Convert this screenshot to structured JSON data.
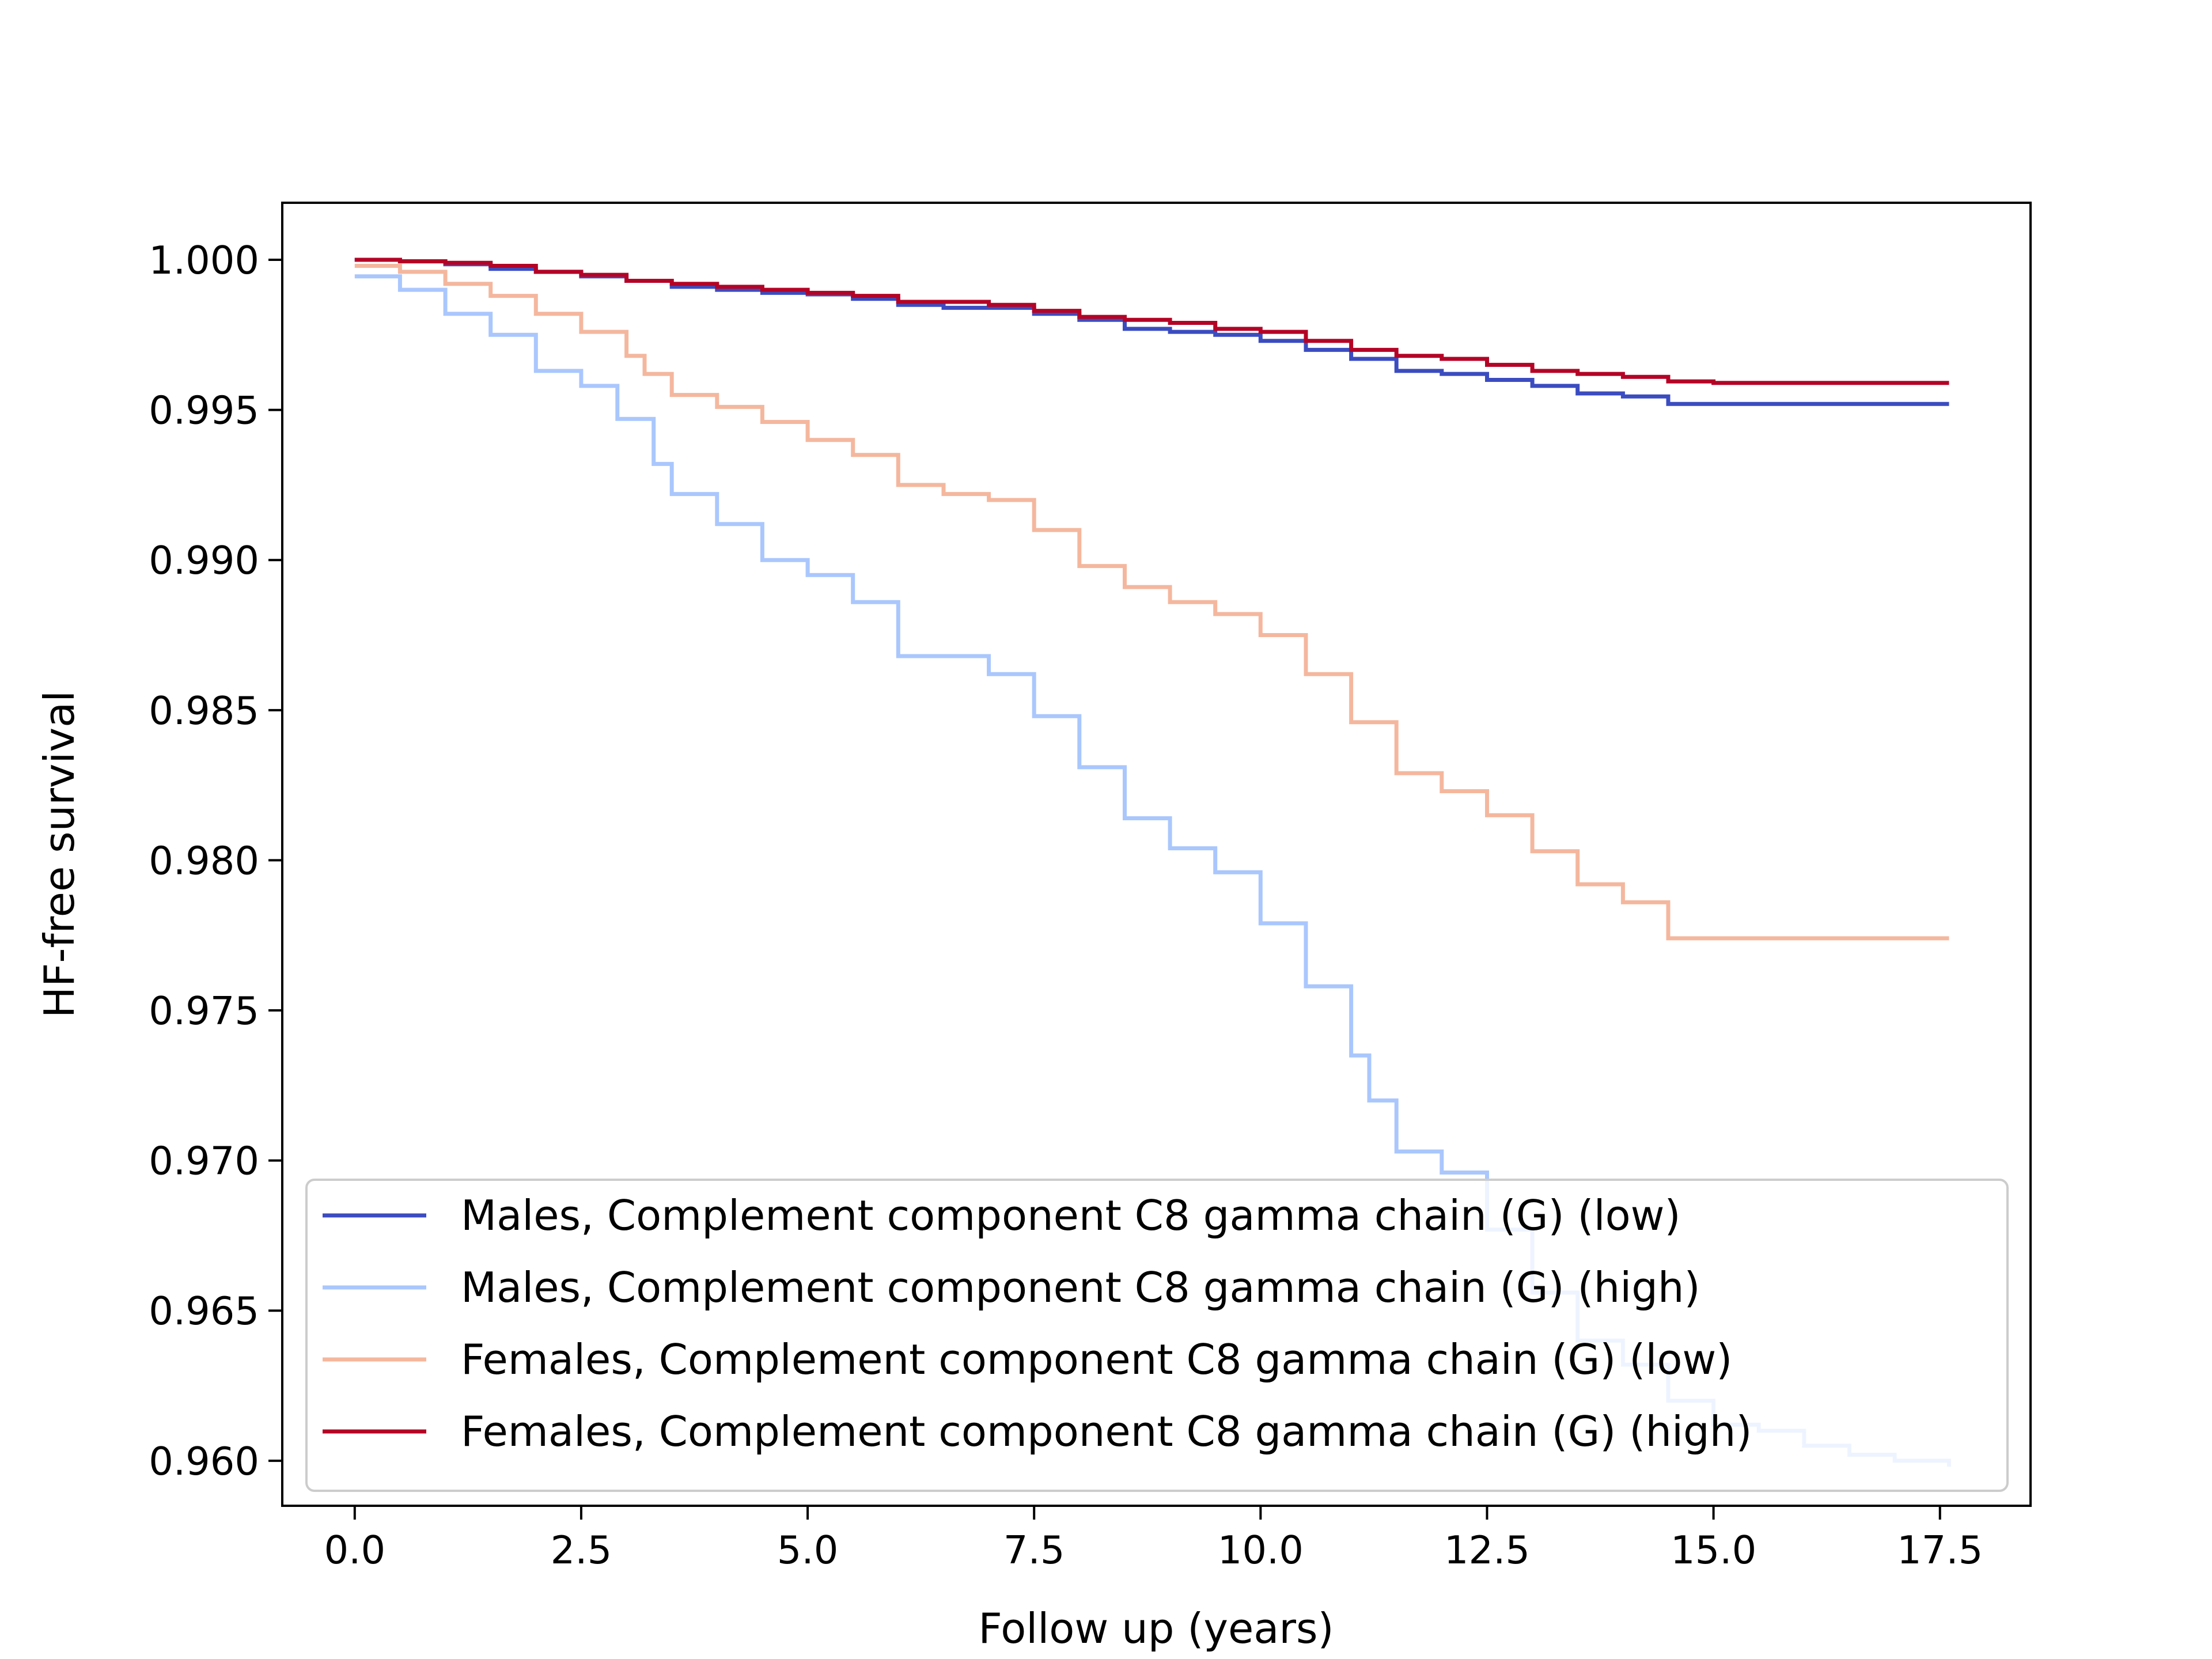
{
  "chart_data": {
    "type": "line",
    "step": true,
    "title": "",
    "xlabel": "Follow up (years)",
    "ylabel": "HF-free survival",
    "xlim": [
      -0.8,
      18.5
    ],
    "ylim": [
      0.9585,
      1.0019
    ],
    "xticks": [
      0.0,
      2.5,
      5.0,
      7.5,
      10.0,
      12.5,
      15.0,
      17.5
    ],
    "xtick_labels": [
      "0.0",
      "2.5",
      "5.0",
      "7.5",
      "10.0",
      "12.5",
      "15.0",
      "17.5"
    ],
    "yticks": [
      0.96,
      0.965,
      0.97,
      0.975,
      0.98,
      0.985,
      0.99,
      0.995,
      1.0
    ],
    "ytick_labels": [
      "0.960",
      "0.965",
      "0.970",
      "0.975",
      "0.980",
      "0.985",
      "0.990",
      "0.995",
      "1.000"
    ],
    "grid": false,
    "legend_position": "lower-left",
    "series": [
      {
        "name": "Males, Complement component C8 gamma chain (G) (low)",
        "color": "#3b4cc0",
        "x": [
          0.0,
          0.5,
          1.0,
          1.5,
          2.0,
          2.5,
          3.0,
          3.5,
          4.0,
          4.5,
          5.0,
          5.5,
          6.0,
          6.5,
          7.0,
          7.5,
          8.0,
          8.5,
          9.0,
          9.5,
          10.0,
          10.5,
          11.0,
          11.5,
          12.0,
          12.5,
          13.0,
          13.5,
          14.0,
          14.5,
          15.0,
          15.5,
          16.0,
          16.5,
          17.0,
          17.6
        ],
        "y": [
          1.0,
          0.99995,
          0.99985,
          0.9997,
          0.9996,
          0.99945,
          0.9993,
          0.9991,
          0.999,
          0.9989,
          0.99885,
          0.9987,
          0.9985,
          0.9984,
          0.9984,
          0.9982,
          0.998,
          0.9977,
          0.9976,
          0.9975,
          0.9973,
          0.997,
          0.9967,
          0.9963,
          0.9962,
          0.996,
          0.9958,
          0.99555,
          0.99545,
          0.9952,
          0.9952,
          0.9952,
          0.9952,
          0.9952,
          0.9952,
          0.9952
        ]
      },
      {
        "name": "Males, Complement component C8 gamma chain (G) (high)",
        "color": "#aac7fd",
        "x": [
          0.0,
          0.5,
          1.0,
          1.5,
          2.0,
          2.5,
          2.9,
          3.3,
          3.5,
          4.0,
          4.5,
          5.0,
          5.5,
          6.0,
          6.5,
          7.0,
          7.5,
          8.0,
          8.5,
          9.0,
          9.5,
          10.0,
          10.5,
          11.0,
          11.2,
          11.5,
          12.0,
          12.5,
          13.0,
          13.5,
          14.0,
          14.5,
          15.0,
          15.5,
          16.0,
          16.5,
          17.0,
          17.6
        ],
        "y": [
          0.99945,
          0.999,
          0.9982,
          0.9975,
          0.9963,
          0.9958,
          0.9947,
          0.9932,
          0.9922,
          0.9912,
          0.99,
          0.9895,
          0.9886,
          0.9868,
          0.9868,
          0.9862,
          0.9848,
          0.9831,
          0.9814,
          0.9804,
          0.9796,
          0.9779,
          0.9758,
          0.9735,
          0.972,
          0.9703,
          0.9696,
          0.9677,
          0.9656,
          0.964,
          0.9632,
          0.962,
          0.9612,
          0.961,
          0.9605,
          0.9602,
          0.96,
          0.9598
        ]
      },
      {
        "name": "Females, Complement component C8 gamma chain (G) (low)",
        "color": "#f4b79e",
        "x": [
          0.0,
          0.5,
          1.0,
          1.5,
          2.0,
          2.5,
          3.0,
          3.2,
          3.5,
          4.0,
          4.5,
          5.0,
          5.5,
          6.0,
          6.5,
          7.0,
          7.5,
          8.0,
          8.5,
          9.0,
          9.5,
          10.0,
          10.5,
          11.0,
          11.5,
          12.0,
          12.5,
          13.0,
          13.5,
          14.0,
          14.5,
          15.0,
          16.0,
          17.0,
          17.6
        ],
        "y": [
          0.9998,
          0.9996,
          0.9992,
          0.9988,
          0.9982,
          0.9976,
          0.9968,
          0.9962,
          0.9955,
          0.9951,
          0.9946,
          0.994,
          0.9935,
          0.9925,
          0.9922,
          0.992,
          0.991,
          0.9898,
          0.9891,
          0.9886,
          0.9882,
          0.9875,
          0.9862,
          0.9846,
          0.9829,
          0.9823,
          0.9815,
          0.9803,
          0.9792,
          0.9786,
          0.9774,
          0.9774,
          0.9774,
          0.9774,
          0.9774
        ]
      },
      {
        "name": "Females, Complement component C8 gamma chain (G) (high)",
        "color": "#b40426",
        "x": [
          0.0,
          0.5,
          1.0,
          1.5,
          2.0,
          2.5,
          3.0,
          3.5,
          4.0,
          4.5,
          5.0,
          5.5,
          6.0,
          6.5,
          7.0,
          7.5,
          8.0,
          8.5,
          9.0,
          9.5,
          10.0,
          10.5,
          11.0,
          11.5,
          12.0,
          12.5,
          13.0,
          13.5,
          14.0,
          14.5,
          15.0,
          15.5,
          16.0,
          16.5,
          17.0,
          17.6
        ],
        "y": [
          1.0,
          0.99995,
          0.9999,
          0.9998,
          0.9996,
          0.9995,
          0.9993,
          0.9992,
          0.9991,
          0.999,
          0.9989,
          0.9988,
          0.9986,
          0.9986,
          0.9985,
          0.9983,
          0.9981,
          0.998,
          0.9979,
          0.9977,
          0.9976,
          0.9973,
          0.997,
          0.9968,
          0.9967,
          0.9965,
          0.9963,
          0.9962,
          0.9961,
          0.99595,
          0.9959,
          0.9959,
          0.9959,
          0.9959,
          0.9959,
          0.9959
        ]
      }
    ]
  }
}
